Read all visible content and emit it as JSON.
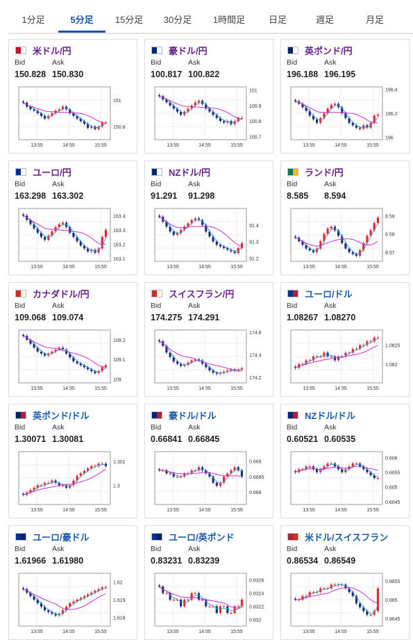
{
  "tabs": [
    {
      "label": "1分足",
      "active": false
    },
    {
      "label": "5分足",
      "active": true
    },
    {
      "label": "15分足",
      "active": false
    },
    {
      "label": "30分足",
      "active": false
    },
    {
      "label": "1時間足",
      "active": false
    },
    {
      "label": "日足",
      "active": false
    },
    {
      "label": "週足",
      "active": false
    },
    {
      "label": "月足",
      "active": false
    }
  ],
  "labels": {
    "bid": "Bid",
    "ask": "Ask"
  },
  "colors": {
    "up": "#e8252c",
    "down": "#1b2a7a",
    "ma_short": "#3aa4d4",
    "ma_long": "#cc2bcc",
    "accent": "#1a56a8"
  },
  "cards": [
    {
      "pair": "米ドル/円",
      "flag": [
        "#c8102e",
        "#ffffff"
      ],
      "flag_icon": "us-jp-flag-icon",
      "bid": "150.828",
      "ask": "150.830",
      "chart_data": {
        "type": "candlestick",
        "x_labels": [
          "13:55",
          "14:55",
          "15:55"
        ],
        "y_ticks": [
          "151",
          "150.8"
        ],
        "ylim": [
          150.7,
          151.1
        ],
        "closes": [
          150.98,
          150.95,
          150.93,
          150.92,
          150.9,
          150.88,
          150.86,
          150.88,
          150.9,
          150.92,
          150.93,
          150.95,
          150.93,
          150.9,
          150.88,
          150.86,
          150.84,
          150.82,
          150.79,
          150.8,
          150.78,
          150.8,
          150.83,
          150.83
        ]
      }
    },
    {
      "pair": "豪ドル/円",
      "flag": [
        "#00247d",
        "#ffffff"
      ],
      "flag_icon": "au-jp-flag-icon",
      "bid": "100.817",
      "ask": "100.822",
      "chart_data": {
        "type": "candlestick",
        "x_labels": [
          "13:55",
          "14:55",
          "15:55"
        ],
        "y_ticks": [
          "101",
          "100.9",
          "100.8",
          "100.7"
        ],
        "ylim": [
          100.68,
          101.02
        ],
        "closes": [
          100.96,
          100.94,
          100.92,
          100.9,
          100.88,
          100.86,
          100.84,
          100.86,
          100.88,
          100.9,
          100.92,
          100.93,
          100.91,
          100.88,
          100.86,
          100.84,
          100.82,
          100.8,
          100.79,
          100.8,
          100.78,
          100.8,
          100.82,
          100.82
        ]
      }
    },
    {
      "pair": "英ポンド/円",
      "flag": [
        "#012169",
        "#ffffff"
      ],
      "flag_icon": "gb-jp-flag-icon",
      "bid": "196.188",
      "ask": "196.195",
      "chart_data": {
        "type": "candlestick",
        "x_labels": [
          "13:55",
          "14:55",
          "15:55"
        ],
        "y_ticks": [
          "196.4",
          "196.2",
          "196"
        ],
        "ylim": [
          195.98,
          196.42
        ],
        "closes": [
          196.3,
          196.28,
          196.25,
          196.22,
          196.18,
          196.15,
          196.12,
          196.16,
          196.2,
          196.24,
          196.27,
          196.28,
          196.25,
          196.2,
          196.16,
          196.12,
          196.1,
          196.08,
          196.07,
          196.1,
          196.08,
          196.12,
          196.18,
          196.19
        ]
      }
    },
    {
      "pair": "ユーロ/円",
      "flag": [
        "#003399",
        "#ffffff"
      ],
      "flag_icon": "eu-jp-flag-icon",
      "bid": "163.298",
      "ask": "163.302",
      "chart_data": {
        "type": "candlestick",
        "x_labels": [
          "13:55",
          "14:55",
          "15:55"
        ],
        "y_ticks": [
          "163.4",
          "163.3",
          "163.2",
          "163.1"
        ],
        "ylim": [
          163.08,
          163.45
        ],
        "closes": [
          163.4,
          163.37,
          163.34,
          163.31,
          163.28,
          163.25,
          163.23,
          163.26,
          163.29,
          163.32,
          163.34,
          163.35,
          163.32,
          163.28,
          163.25,
          163.22,
          163.19,
          163.17,
          163.15,
          163.16,
          163.14,
          163.17,
          163.25,
          163.3
        ]
      }
    },
    {
      "pair": "NZドル/円",
      "flag": [
        "#00247d",
        "#ffffff"
      ],
      "flag_icon": "nz-jp-flag-icon",
      "bid": "91.291",
      "ask": "91.298",
      "chart_data": {
        "type": "candlestick",
        "x_labels": [
          "13:55",
          "14:55",
          "15:55"
        ],
        "y_ticks": [
          "91.4",
          "91.3",
          "91.2"
        ],
        "ylim": [
          91.18,
          91.5
        ],
        "closes": [
          91.45,
          91.42,
          91.39,
          91.36,
          91.34,
          91.35,
          91.37,
          91.39,
          91.41,
          91.43,
          91.44,
          91.43,
          91.4,
          91.36,
          91.33,
          91.3,
          91.28,
          91.27,
          91.26,
          91.25,
          91.24,
          91.23,
          91.26,
          91.29
        ]
      }
    },
    {
      "pair": "ランド/円",
      "flag": [
        "#007a4d",
        "#ffb612"
      ],
      "flag_icon": "za-jp-flag-icon",
      "bid": "8.585",
      "ask": "8.594",
      "chart_data": {
        "type": "candlestick",
        "x_labels": [
          "13:55",
          "14:55",
          "15:55"
        ],
        "y_ticks": [
          "8.59",
          "8.58",
          "8.57"
        ],
        "ylim": [
          8.565,
          8.594
        ],
        "closes": [
          8.578,
          8.576,
          8.574,
          8.572,
          8.571,
          8.57,
          8.572,
          8.576,
          8.58,
          8.583,
          8.584,
          8.582,
          8.579,
          8.575,
          8.572,
          8.57,
          8.569,
          8.568,
          8.571,
          8.575,
          8.579,
          8.582,
          8.586,
          8.589
        ]
      }
    },
    {
      "pair": "カナダドル/円",
      "flag": [
        "#d52b1e",
        "#ffffff"
      ],
      "flag_icon": "ca-jp-flag-icon",
      "bid": "109.068",
      "ask": "109.074",
      "chart_data": {
        "type": "candlestick",
        "x_labels": [
          "13:55",
          "14:55",
          "15:55"
        ],
        "y_ticks": [
          "109.2",
          "109.1",
          "109"
        ],
        "ylim": [
          108.98,
          109.25
        ],
        "closes": [
          109.22,
          109.2,
          109.18,
          109.16,
          109.14,
          109.13,
          109.12,
          109.13,
          109.14,
          109.15,
          109.16,
          109.15,
          109.13,
          109.11,
          109.09,
          109.08,
          109.07,
          109.06,
          109.05,
          109.04,
          109.03,
          109.04,
          109.06,
          109.07
        ]
      }
    },
    {
      "pair": "スイスフラン/円",
      "flag": [
        "#d52b1e",
        "#ffffff"
      ],
      "flag_icon": "ch-jp-flag-icon",
      "bid": "174.275",
      "ask": "174.291",
      "chart_data": {
        "type": "candlestick",
        "x_labels": [
          "13:55",
          "14:55",
          "15:55"
        ],
        "y_ticks": [
          "174.6",
          "174.4",
          "174.2"
        ],
        "ylim": [
          174.15,
          174.62
        ],
        "closes": [
          174.52,
          174.48,
          174.42,
          174.38,
          174.34,
          174.32,
          174.3,
          174.31,
          174.33,
          174.35,
          174.36,
          174.35,
          174.32,
          174.29,
          174.26,
          174.24,
          174.23,
          174.24,
          174.25,
          174.26,
          174.27,
          174.26,
          174.27,
          174.28
        ]
      }
    },
    {
      "pair": "ユーロ/ドル",
      "flag": [
        "#003399",
        "#b22234"
      ],
      "flag_icon": "eu-us-flag-icon",
      "bid": "1.08267",
      "ask": "1.08270",
      "chart_data": {
        "type": "candlestick",
        "x_labels": [
          "13:55",
          "14:55",
          "15:55"
        ],
        "y_ticks": [
          "1.0825",
          "1.082"
        ],
        "ylim": [
          1.0815,
          1.0829
        ],
        "closes": [
          1.0819,
          1.082,
          1.082,
          1.0821,
          1.0821,
          1.0822,
          1.0822,
          1.0822,
          1.0823,
          1.0822,
          1.0822,
          1.0821,
          1.0822,
          1.0822,
          1.0823,
          1.0823,
          1.0824,
          1.0824,
          1.0825,
          1.0825,
          1.0826,
          1.0826,
          1.0827,
          1.0827
        ]
      }
    },
    {
      "pair": "英ポンド/ドル",
      "flag": [
        "#012169",
        "#b22234"
      ],
      "flag_icon": "gb-us-flag-icon",
      "bid": "1.30071",
      "ask": "1.30081",
      "chart_data": {
        "type": "candlestick",
        "x_labels": [
          "13:55",
          "14:55",
          "15:55"
        ],
        "y_ticks": [
          "1.301",
          "1.3"
        ],
        "ylim": [
          1.2992,
          1.3014
        ],
        "closes": [
          1.2996,
          1.2997,
          1.2998,
          1.2999,
          1.3,
          1.3,
          1.3001,
          1.3001,
          1.3002,
          1.3001,
          1.3,
          1.3,
          1.2999,
          1.3,
          1.3002,
          1.3004,
          1.3005,
          1.3006,
          1.3007,
          1.3008,
          1.3008,
          1.3009,
          1.3009,
          1.3008
        ]
      }
    },
    {
      "pair": "豪ドル/ドル",
      "flag": [
        "#00247d",
        "#b22234"
      ],
      "flag_icon": "au-us-flag-icon",
      "bid": "0.66841",
      "ask": "0.66845",
      "chart_data": {
        "type": "candlestick",
        "x_labels": [
          "13:55",
          "14:55",
          "15:55"
        ],
        "y_ticks": [
          "0.669",
          "0.6685",
          "0.668"
        ],
        "ylim": [
          0.6676,
          0.6693
        ],
        "closes": [
          0.6687,
          0.6687,
          0.6686,
          0.6686,
          0.6685,
          0.6685,
          0.6685,
          0.6686,
          0.6686,
          0.6687,
          0.6687,
          0.6688,
          0.6687,
          0.6686,
          0.6685,
          0.6683,
          0.6682,
          0.6683,
          0.6685,
          0.6686,
          0.6687,
          0.6688,
          0.6687,
          0.6685
        ]
      }
    },
    {
      "pair": "NZドル/ドル",
      "flag": [
        "#00247d",
        "#b22234"
      ],
      "flag_icon": "nz-us-flag-icon",
      "bid": "0.60521",
      "ask": "0.60535",
      "chart_data": {
        "type": "candlestick",
        "x_labels": [
          "13:55",
          "14:55",
          "15:55"
        ],
        "y_ticks": [
          "0.606",
          "0.6055",
          "0.605",
          "0.6045"
        ],
        "ylim": [
          0.6044,
          0.6062
        ],
        "closes": [
          0.6055,
          0.6056,
          0.6056,
          0.6057,
          0.6057,
          0.6056,
          0.6055,
          0.6056,
          0.6057,
          0.6058,
          0.6058,
          0.6057,
          0.6056,
          0.6055,
          0.6056,
          0.6057,
          0.6058,
          0.6058,
          0.6057,
          0.6056,
          0.6055,
          0.6054,
          0.6053,
          0.6053
        ]
      }
    },
    {
      "pair": "ユーロ/豪ドル",
      "flag": [
        "#003399",
        "#00247d"
      ],
      "flag_icon": "eu-au-flag-icon",
      "bid": "1.61966",
      "ask": "1.61980",
      "chart_data": {
        "type": "candlestick",
        "x_labels": [
          "13:55",
          "14:55",
          "15:55"
        ],
        "y_ticks": [
          "1.62",
          "1.619",
          "1.618"
        ],
        "ylim": [
          1.6175,
          1.6205
        ],
        "closes": [
          1.6196,
          1.6194,
          1.6192,
          1.619,
          1.6188,
          1.6186,
          1.6184,
          1.6183,
          1.6182,
          1.6181,
          1.6182,
          1.6184,
          1.6186,
          1.6188,
          1.6189,
          1.619,
          1.6191,
          1.6192,
          1.6193,
          1.6194,
          1.6195,
          1.6196,
          1.6197,
          1.6197
        ]
      }
    },
    {
      "pair": "ユーロ/英ポンド",
      "flag": [
        "#003399",
        "#012169"
      ],
      "flag_icon": "eu-gb-flag-icon",
      "bid": "0.83231",
      "ask": "0.83239",
      "chart_data": {
        "type": "candlestick",
        "x_labels": [
          "13:55",
          "14:55",
          "15:55"
        ],
        "y_ticks": [
          "0.8326",
          "0.8324",
          "0.8322",
          "0.832"
        ],
        "ylim": [
          0.8319,
          0.8327
        ],
        "closes": [
          0.8325,
          0.8324,
          0.8324,
          0.8323,
          0.8323,
          0.8323,
          0.8322,
          0.8323,
          0.8323,
          0.8324,
          0.8324,
          0.8323,
          0.8323,
          0.8322,
          0.8322,
          0.8322,
          0.8321,
          0.8322,
          0.8322,
          0.8321,
          0.8321,
          0.8322,
          0.8322,
          0.8323
        ]
      }
    },
    {
      "pair": "米ドル/スイスフラン",
      "flag": [
        "#b22234",
        "#d52b1e"
      ],
      "flag_icon": "us-ch-flag-icon",
      "bid": "0.86534",
      "ask": "0.86549",
      "chart_data": {
        "type": "candlestick",
        "x_labels": [
          "13:55",
          "14:55",
          "15:55"
        ],
        "y_ticks": [
          "0.8655",
          "0.865",
          "0.8645"
        ],
        "ylim": [
          0.8643,
          0.8657
        ],
        "closes": [
          0.865,
          0.865,
          0.8651,
          0.8651,
          0.8652,
          0.8652,
          0.8652,
          0.8653,
          0.8653,
          0.8653,
          0.8654,
          0.8654,
          0.8654,
          0.8654,
          0.8653,
          0.8652,
          0.8651,
          0.8649,
          0.8648,
          0.8647,
          0.8646,
          0.8646,
          0.8647,
          0.8653
        ]
      }
    }
  ]
}
